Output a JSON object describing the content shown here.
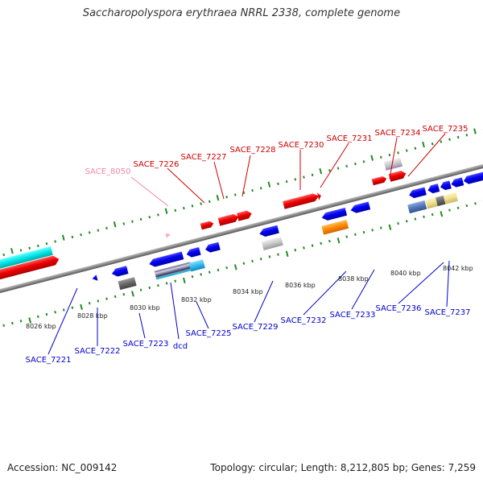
{
  "title": "Saccharopolyspora erythraea NRRL 2338, complete genome",
  "accession": "Accession: NC_009142",
  "summary": "Topology: circular; Length: 8,212,805 bp; Genes: 7,259",
  "colors": {
    "forward_label": "#cc0000",
    "reverse_label": "#0000cc",
    "pseudo_label": "#ee88aa",
    "backbone": "#888888",
    "tick": "#228b22"
  },
  "scale_labels": [
    "8026 kbp",
    "8028 kbp",
    "8030 kbp",
    "8032 kbp",
    "8034 kbp",
    "8036 kbp",
    "8038 kbp",
    "8040 kbp",
    "8042 kbp"
  ],
  "forward_labels": [
    "SACE_8050",
    "SACE_7226",
    "SACE_7227",
    "SACE_7228",
    "SACE_7230",
    "SACE_7231",
    "SACE_7234",
    "SACE_7235"
  ],
  "reverse_labels": [
    "SACE_7221",
    "SACE_7222",
    "SACE_7223",
    "dcd",
    "SACE_7225",
    "SACE_7229",
    "SACE_7232",
    "SACE_7233",
    "SACE_7236",
    "SACE_7237"
  ]
}
